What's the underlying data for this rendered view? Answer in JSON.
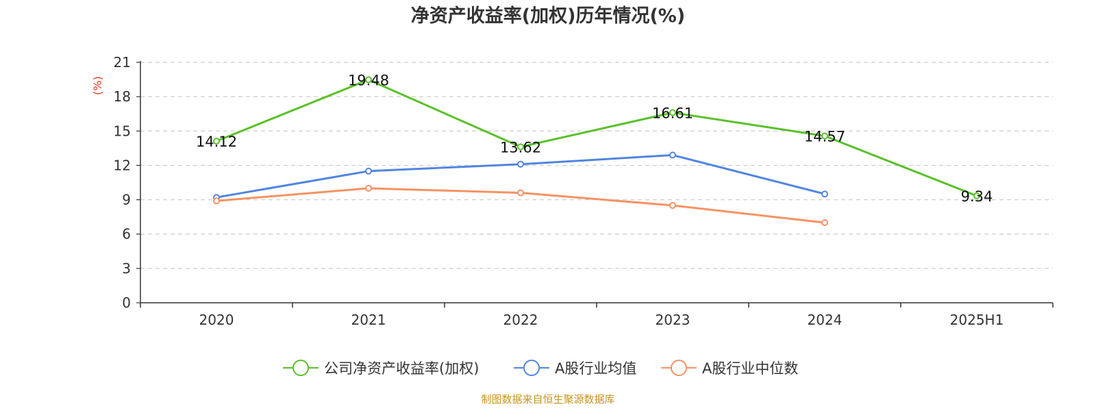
{
  "chart_data": {
    "type": "line",
    "title": "净资产收益率(加权)历年情况(%)",
    "ylabel": "(%)",
    "xlabel": "",
    "ylim": [
      0,
      21
    ],
    "yticks": [
      0,
      3,
      6,
      9,
      12,
      15,
      18,
      21
    ],
    "grid": true,
    "legend_position": "bottom-center",
    "categories": [
      "2020",
      "2021",
      "2022",
      "2023",
      "2024",
      "2025H1"
    ],
    "series": [
      {
        "name": "公司净资产收益率(加权)",
        "color": "#5ac02a",
        "values": [
          14.12,
          19.48,
          13.62,
          16.61,
          14.57,
          9.34
        ],
        "labels": [
          "14.12",
          "19.48",
          "13.62",
          "16.61",
          "14.57",
          "9.34"
        ],
        "show_labels": true
      },
      {
        "name": "A股行业均值",
        "color": "#5085e0",
        "values": [
          9.2,
          11.5,
          12.1,
          12.9,
          9.5,
          null
        ],
        "show_labels": false
      },
      {
        "name": "A股行业中位数",
        "color": "#f79262",
        "values": [
          8.9,
          10.0,
          9.6,
          8.5,
          7.0,
          null
        ],
        "show_labels": false
      }
    ],
    "source": "制图数据来自恒生聚源数据库"
  }
}
